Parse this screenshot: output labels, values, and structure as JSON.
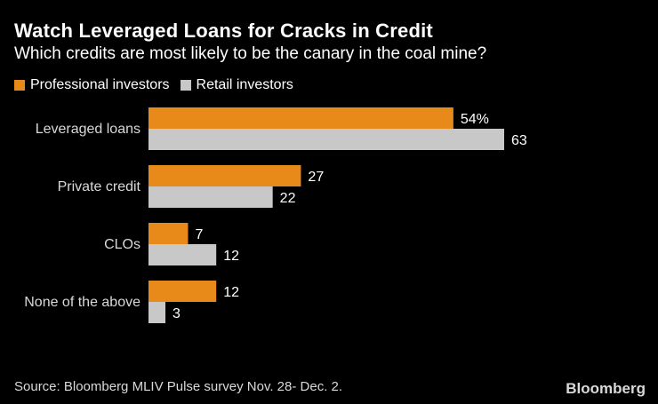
{
  "colors": {
    "professional": "#E88A1A",
    "retail": "#C8C8C8",
    "background": "#000000"
  },
  "source": "Source: Bloomberg MLIV Pulse survey Nov. 28- Dec. 2.",
  "brand": "Bloomberg",
  "chart_data": {
    "type": "bar",
    "orientation": "horizontal",
    "title": "Watch Leveraged Loans for Cracks in Credit",
    "subtitle": "Which credits are most likely to be the canary in the coal mine?",
    "categories": [
      "Leveraged loans",
      "Private credit",
      "CLOs",
      "None of the above"
    ],
    "series": [
      {
        "name": "Professional investors",
        "values": [
          54,
          27,
          7,
          12
        ],
        "value_labels": [
          "54%",
          "27",
          "7",
          "12"
        ]
      },
      {
        "name": "Retail investors",
        "values": [
          63,
          22,
          12,
          3
        ],
        "value_labels": [
          "63",
          "22",
          "12",
          "3"
        ]
      }
    ],
    "xlim": [
      0,
      63
    ],
    "grid": false,
    "legend_position": "top-left"
  }
}
